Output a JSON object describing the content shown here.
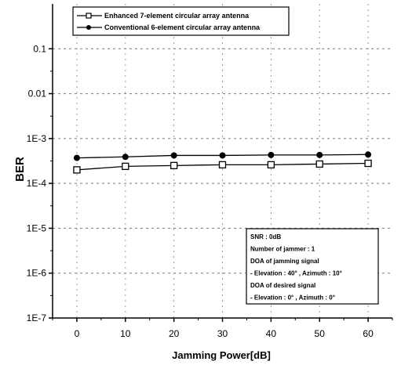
{
  "chart_data": {
    "type": "line",
    "xlabel": "Jamming Power[dB]",
    "ylabel": "BER",
    "x": [
      0,
      10,
      20,
      30,
      40,
      50,
      60
    ],
    "xlim": [
      -5,
      65
    ],
    "ylim": [
      1e-07,
      1
    ],
    "yscale": "log",
    "xticks": [
      "0",
      "10",
      "20",
      "30",
      "40",
      "50",
      "60"
    ],
    "yticks": [
      {
        "value": 1e-07,
        "label": "1E-7"
      },
      {
        "value": 1e-06,
        "label": "1E-6"
      },
      {
        "value": 1e-05,
        "label": "1E-5"
      },
      {
        "value": 0.0001,
        "label": "1E-4"
      },
      {
        "value": 0.001,
        "label": "1E-3"
      },
      {
        "value": 0.01,
        "label": "0.01"
      },
      {
        "value": 0.1,
        "label": "0.1"
      }
    ],
    "grid": true,
    "legend_position": "top-left",
    "series": [
      {
        "name": "Enhanced 7-element circular array antenna",
        "marker": "open-square",
        "color": "#000000",
        "values": [
          0.0002,
          0.00024,
          0.00025,
          0.00026,
          0.00026,
          0.00027,
          0.00028
        ]
      },
      {
        "name": "Conventional 6-element circular array antenna",
        "marker": "filled-circle",
        "color": "#000000",
        "values": [
          0.00037,
          0.00039,
          0.00042,
          0.00042,
          0.00043,
          0.00043,
          0.00044
        ]
      }
    ],
    "annotation": {
      "lines": [
        "SNR : 0dB",
        "Number of jammer : 1",
        "DOA of jamming signal",
        " - Elevation : 40° , Azimuth : 10°",
        "DOA of desired signal",
        " - Elevation : 0° , Azimuth : 0°"
      ]
    }
  }
}
